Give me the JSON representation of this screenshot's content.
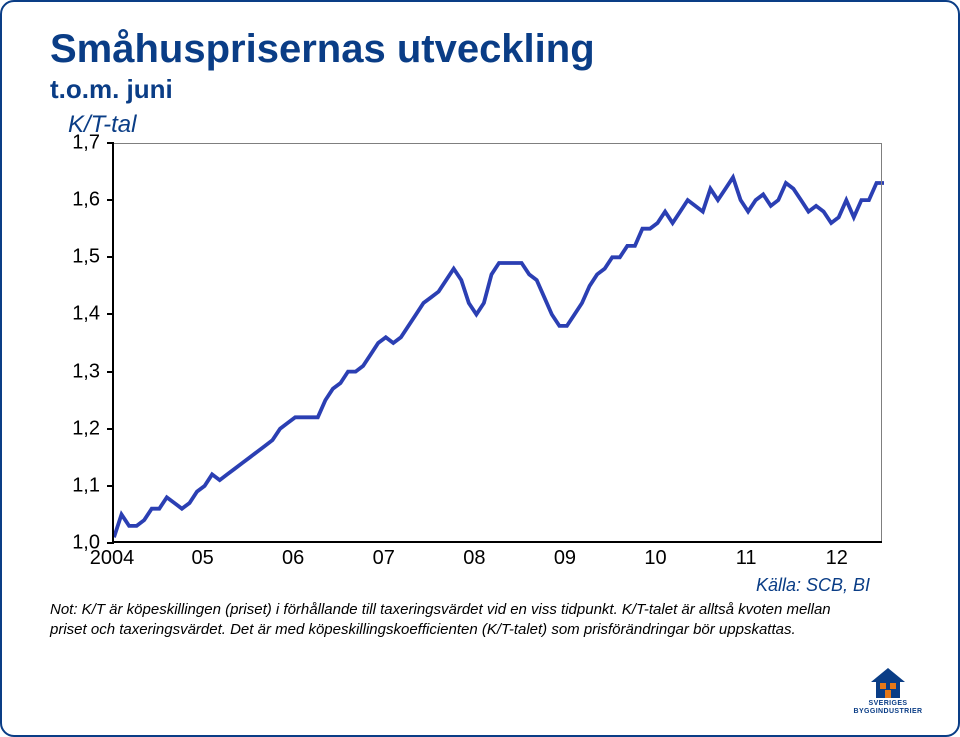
{
  "title": "Småhusprisernas utveckling",
  "subtitle": "t.o.m. juni",
  "ylabel": "K/T-tal",
  "source": "Källa: SCB, BI",
  "footnote": "Not: K/T är köpeskillingen (priset) i förhållande till taxeringsvärdet vid en viss tidpunkt. K/T-talet är alltså kvoten mellan priset och taxeringsvärdet. Det är med köpeskillingskoefficienten (K/T-talet) som prisförändringar bör uppskattas.",
  "logo_line1": "SVERIGES",
  "logo_line2": "BYGGINDUSTRIER",
  "chart": {
    "type": "line",
    "background_color": "#ffffff",
    "axis_color": "#000000",
    "plot_border_color": "#7f7f7f",
    "line_color": "#2b3fb3",
    "line_width": 3.8,
    "title_color": "#0a3d86",
    "title_fontsize": 40,
    "subtitle_fontsize": 26,
    "ylabel_fontsize": 24,
    "tick_fontsize": 20,
    "footnote_fontsize": 15,
    "x_index_min": 0,
    "x_index_max": 102,
    "ylim": [
      1.0,
      1.7
    ],
    "yticks": [
      1.0,
      1.1,
      1.2,
      1.3,
      1.4,
      1.5,
      1.6,
      1.7
    ],
    "ytick_labels": [
      "1,0",
      "1,1",
      "1,2",
      "1,3",
      "1,4",
      "1,5",
      "1,6",
      "1,7"
    ],
    "xtick_indices": [
      0,
      12,
      24,
      36,
      48,
      60,
      72,
      84,
      96
    ],
    "xtick_labels": [
      "2004",
      "05",
      "06",
      "07",
      "08",
      "09",
      "10",
      "11",
      "12"
    ],
    "values": [
      1.01,
      1.05,
      1.03,
      1.03,
      1.04,
      1.06,
      1.06,
      1.08,
      1.07,
      1.06,
      1.07,
      1.09,
      1.1,
      1.12,
      1.11,
      1.12,
      1.13,
      1.14,
      1.15,
      1.16,
      1.17,
      1.18,
      1.2,
      1.21,
      1.22,
      1.22,
      1.22,
      1.22,
      1.25,
      1.27,
      1.28,
      1.3,
      1.3,
      1.31,
      1.33,
      1.35,
      1.36,
      1.35,
      1.36,
      1.38,
      1.4,
      1.42,
      1.43,
      1.44,
      1.46,
      1.48,
      1.46,
      1.42,
      1.4,
      1.42,
      1.47,
      1.49,
      1.49,
      1.49,
      1.49,
      1.47,
      1.46,
      1.43,
      1.4,
      1.38,
      1.38,
      1.4,
      1.42,
      1.45,
      1.47,
      1.48,
      1.5,
      1.5,
      1.52,
      1.52,
      1.55,
      1.55,
      1.56,
      1.58,
      1.56,
      1.58,
      1.6,
      1.59,
      1.58,
      1.62,
      1.6,
      1.62,
      1.64,
      1.6,
      1.58,
      1.6,
      1.61,
      1.59,
      1.6,
      1.63,
      1.62,
      1.6,
      1.58,
      1.59,
      1.58,
      1.56,
      1.57,
      1.6,
      1.57,
      1.6,
      1.6,
      1.63,
      1.63
    ]
  }
}
